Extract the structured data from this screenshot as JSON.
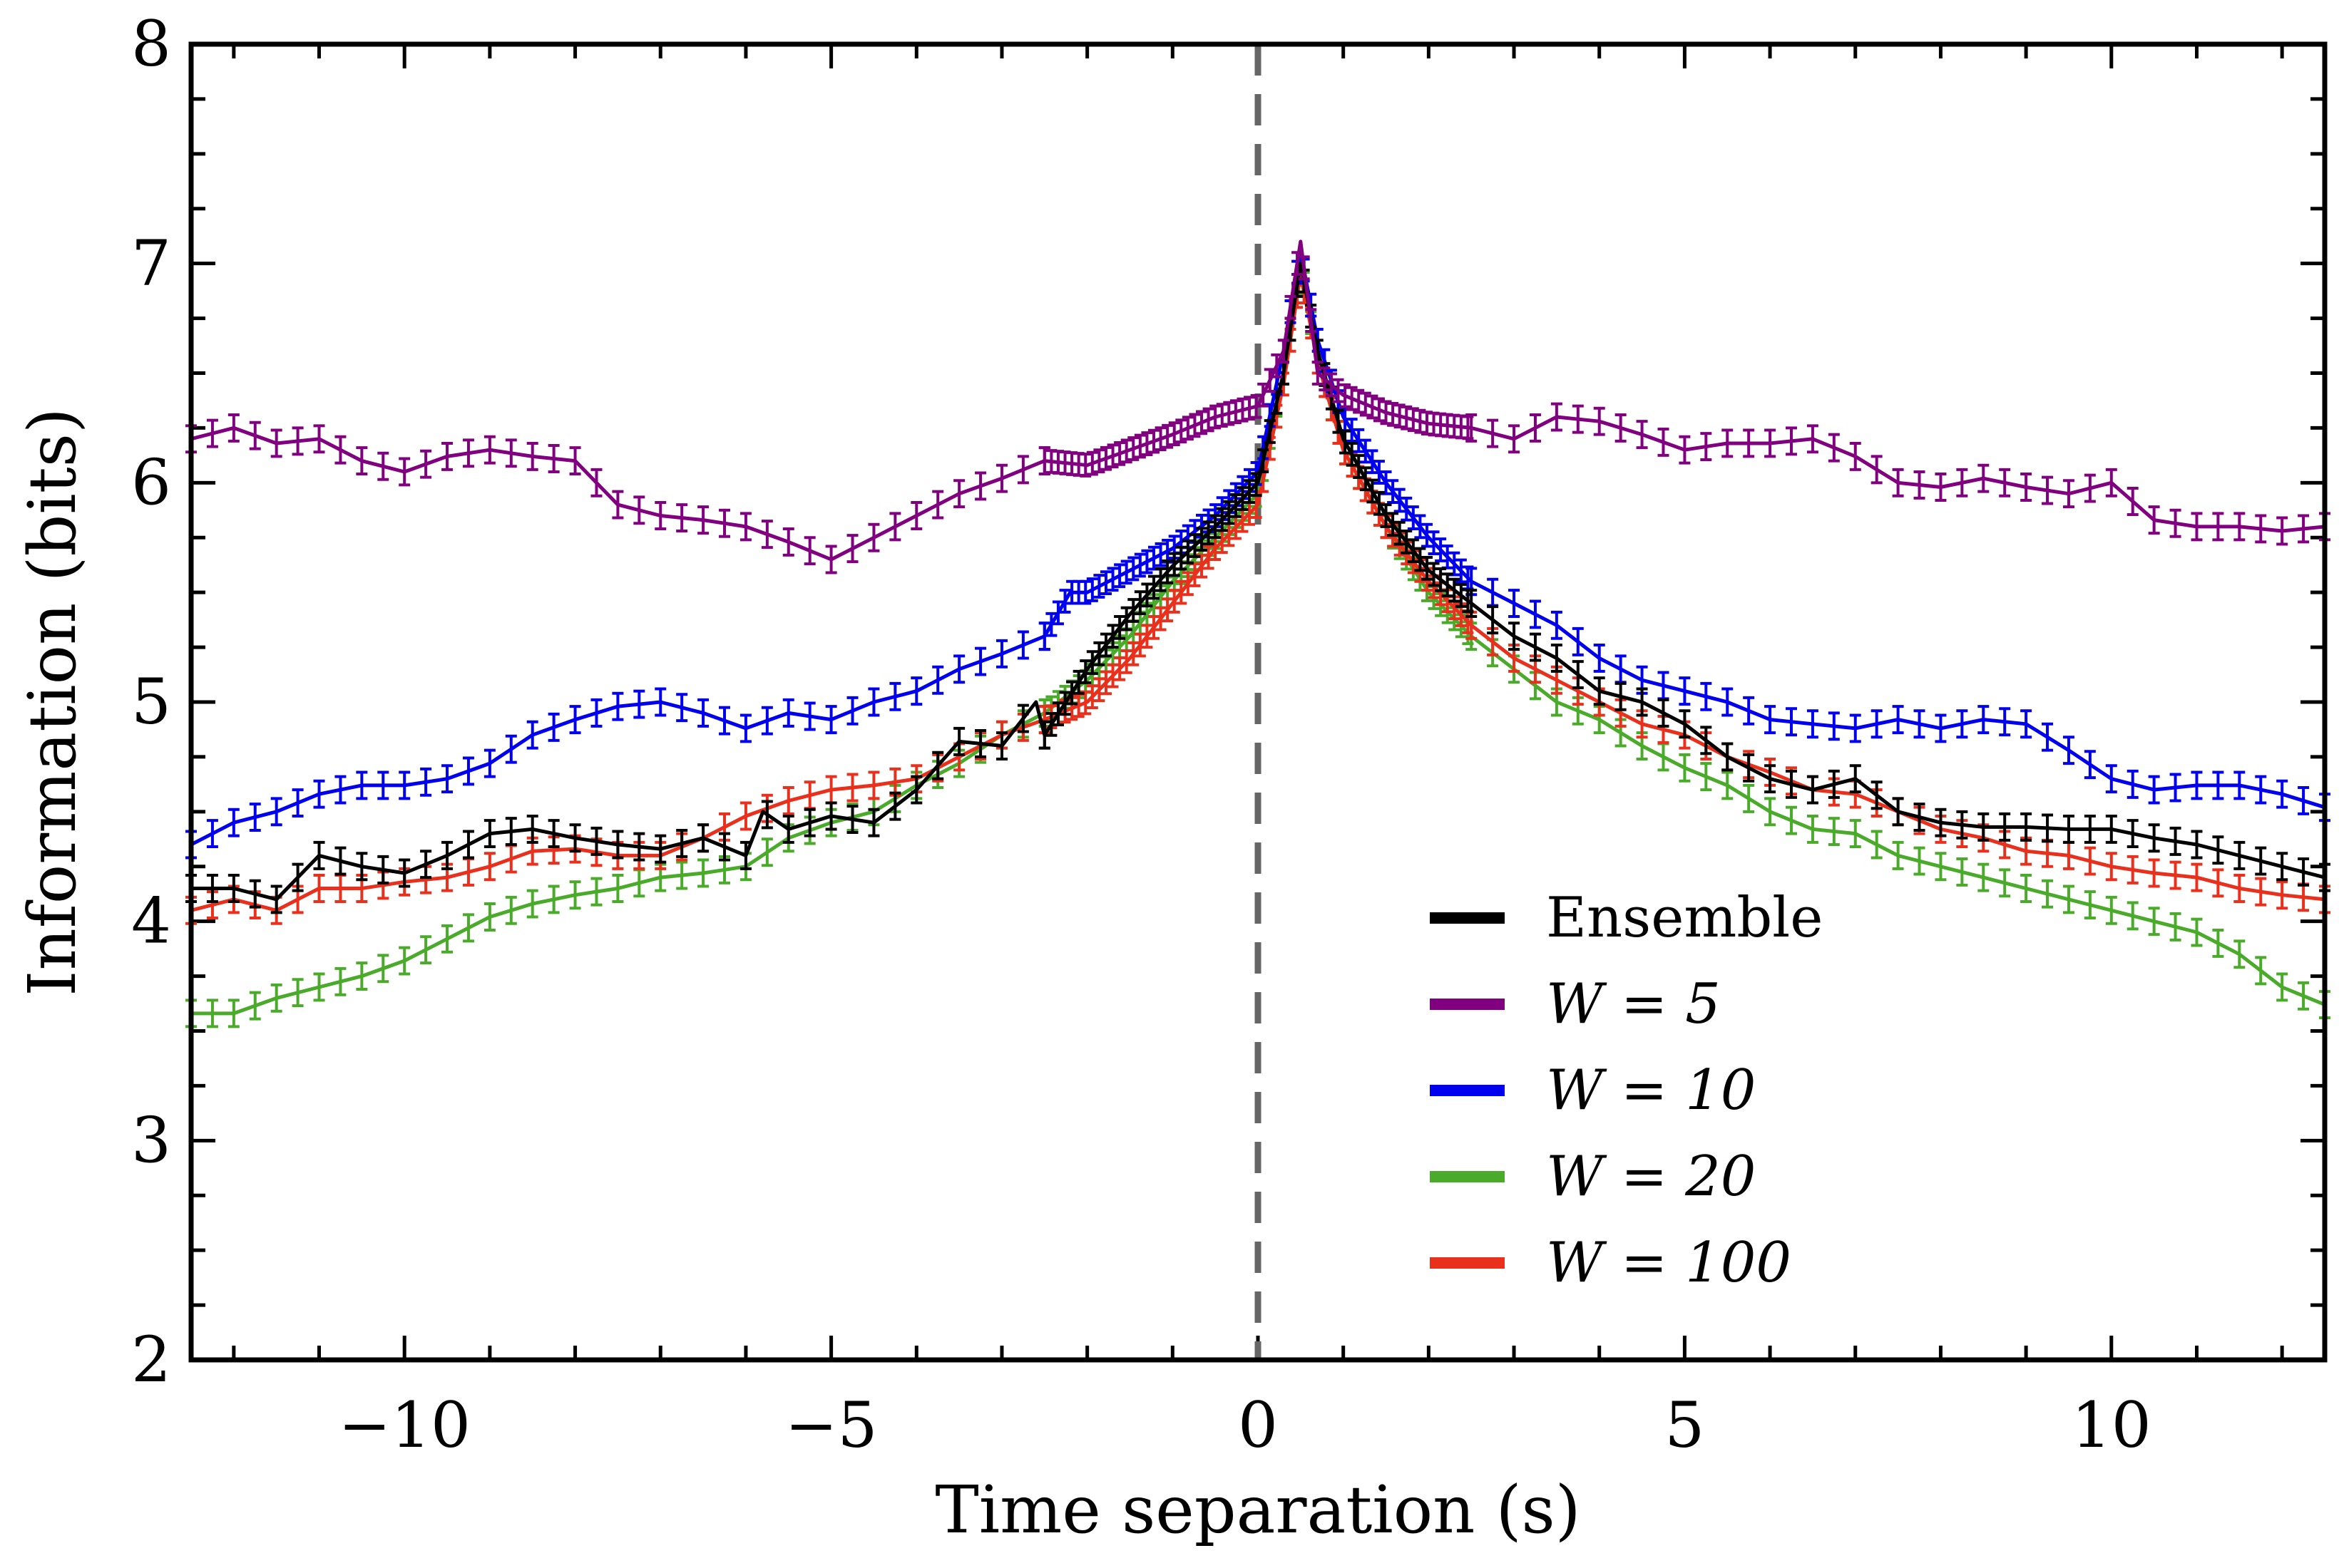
{
  "chart_data": {
    "type": "line",
    "title": "",
    "xlabel": "Time separation (s)",
    "ylabel": "Information (bits)",
    "xlim": [
      -12.5,
      12.5
    ],
    "ylim": [
      2,
      8
    ],
    "xticks": [
      -10,
      -5,
      0,
      5,
      10
    ],
    "xtick_labels": [
      "−10",
      "−5",
      "0",
      "5",
      "10"
    ],
    "yticks": [
      2,
      3,
      4,
      5,
      6,
      7,
      8
    ],
    "ytick_labels": [
      "2",
      "3",
      "4",
      "5",
      "6",
      "7",
      "8"
    ],
    "reference_line": {
      "x": 0,
      "style": "dashed",
      "color": "#666666"
    },
    "legend_location": "lower-right",
    "series": [
      {
        "name": "Ensemble",
        "color": "#000000",
        "points": [
          [
            -12.5,
            4.15
          ],
          [
            -12,
            4.15
          ],
          [
            -11.5,
            4.1
          ],
          [
            -11,
            4.3
          ],
          [
            -10.5,
            4.25
          ],
          [
            -10,
            4.22
          ],
          [
            -9.5,
            4.3
          ],
          [
            -9,
            4.4
          ],
          [
            -8.5,
            4.42
          ],
          [
            -8,
            4.38
          ],
          [
            -7.5,
            4.35
          ],
          [
            -7,
            4.33
          ],
          [
            -6.5,
            4.38
          ],
          [
            -6,
            4.3
          ],
          [
            -5.8,
            4.5
          ],
          [
            -5.5,
            4.42
          ],
          [
            -5,
            4.48
          ],
          [
            -4.5,
            4.45
          ],
          [
            -4,
            4.6
          ],
          [
            -3.5,
            4.82
          ],
          [
            -3,
            4.8
          ],
          [
            -2.6,
            5.0
          ],
          [
            -2.5,
            4.85
          ],
          [
            -2,
            5.15
          ],
          [
            -1.5,
            5.4
          ],
          [
            -1,
            5.62
          ],
          [
            -0.5,
            5.8
          ],
          [
            0,
            6.0
          ],
          [
            0.3,
            6.5
          ],
          [
            0.5,
            7.0
          ],
          [
            0.7,
            6.6
          ],
          [
            1,
            6.2
          ],
          [
            1.5,
            5.85
          ],
          [
            2,
            5.6
          ],
          [
            2.5,
            5.45
          ],
          [
            3,
            5.3
          ],
          [
            3.5,
            5.2
          ],
          [
            4,
            5.05
          ],
          [
            4.5,
            5.0
          ],
          [
            5,
            4.9
          ],
          [
            5.5,
            4.75
          ],
          [
            6,
            4.65
          ],
          [
            6.5,
            4.6
          ],
          [
            7,
            4.65
          ],
          [
            7.5,
            4.5
          ],
          [
            8,
            4.45
          ],
          [
            8.5,
            4.43
          ],
          [
            9,
            4.43
          ],
          [
            9.5,
            4.42
          ],
          [
            10,
            4.42
          ],
          [
            10.5,
            4.38
          ],
          [
            11,
            4.35
          ],
          [
            11.5,
            4.3
          ],
          [
            12,
            4.25
          ],
          [
            12.5,
            4.2
          ]
        ]
      },
      {
        "name": "W = 5",
        "color": "#800080",
        "points": [
          [
            -12.5,
            6.2
          ],
          [
            -12,
            6.25
          ],
          [
            -11.5,
            6.18
          ],
          [
            -11,
            6.2
          ],
          [
            -10.5,
            6.1
          ],
          [
            -10,
            6.05
          ],
          [
            -9.5,
            6.12
          ],
          [
            -9,
            6.15
          ],
          [
            -8.5,
            6.12
          ],
          [
            -8,
            6.1
          ],
          [
            -7.5,
            5.9
          ],
          [
            -7,
            5.85
          ],
          [
            -6.5,
            5.83
          ],
          [
            -6,
            5.8
          ],
          [
            -5.5,
            5.73
          ],
          [
            -5,
            5.65
          ],
          [
            -4.5,
            5.75
          ],
          [
            -4,
            5.85
          ],
          [
            -3.5,
            5.95
          ],
          [
            -3,
            6.02
          ],
          [
            -2.5,
            6.1
          ],
          [
            -2,
            6.08
          ],
          [
            -1.5,
            6.15
          ],
          [
            -1,
            6.22
          ],
          [
            -0.5,
            6.3
          ],
          [
            0,
            6.35
          ],
          [
            0.3,
            6.6
          ],
          [
            0.5,
            7.1
          ],
          [
            0.7,
            6.5
          ],
          [
            1,
            6.4
          ],
          [
            1.5,
            6.32
          ],
          [
            2,
            6.27
          ],
          [
            2.5,
            6.25
          ],
          [
            3,
            6.2
          ],
          [
            3.5,
            6.3
          ],
          [
            4,
            6.28
          ],
          [
            4.5,
            6.22
          ],
          [
            5,
            6.15
          ],
          [
            5.5,
            6.18
          ],
          [
            6,
            6.18
          ],
          [
            6.5,
            6.2
          ],
          [
            7,
            6.12
          ],
          [
            7.5,
            6.0
          ],
          [
            8,
            5.98
          ],
          [
            8.5,
            6.02
          ],
          [
            9,
            5.98
          ],
          [
            9.5,
            5.95
          ],
          [
            10,
            6.0
          ],
          [
            10.5,
            5.83
          ],
          [
            11,
            5.8
          ],
          [
            11.5,
            5.8
          ],
          [
            12,
            5.78
          ],
          [
            12.5,
            5.8
          ]
        ]
      },
      {
        "name": "W = 10",
        "color": "#0000ee",
        "points": [
          [
            -12.5,
            4.35
          ],
          [
            -12,
            4.45
          ],
          [
            -11.5,
            4.5
          ],
          [
            -11,
            4.58
          ],
          [
            -10.5,
            4.62
          ],
          [
            -10,
            4.62
          ],
          [
            -9.5,
            4.65
          ],
          [
            -9,
            4.72
          ],
          [
            -8.5,
            4.85
          ],
          [
            -8,
            4.92
          ],
          [
            -7.5,
            4.98
          ],
          [
            -7,
            5.0
          ],
          [
            -6.5,
            4.95
          ],
          [
            -6,
            4.88
          ],
          [
            -5.5,
            4.95
          ],
          [
            -5,
            4.92
          ],
          [
            -4.5,
            5.0
          ],
          [
            -4,
            5.05
          ],
          [
            -3.5,
            5.15
          ],
          [
            -3,
            5.22
          ],
          [
            -2.5,
            5.3
          ],
          [
            -2.2,
            5.5
          ],
          [
            -2,
            5.5
          ],
          [
            -1.5,
            5.6
          ],
          [
            -1,
            5.7
          ],
          [
            -0.5,
            5.85
          ],
          [
            0,
            6.05
          ],
          [
            0.3,
            6.6
          ],
          [
            0.5,
            7.05
          ],
          [
            0.7,
            6.65
          ],
          [
            1,
            6.3
          ],
          [
            1.5,
            6.0
          ],
          [
            2,
            5.75
          ],
          [
            2.5,
            5.55
          ],
          [
            3,
            5.45
          ],
          [
            3.5,
            5.35
          ],
          [
            4,
            5.2
          ],
          [
            4.5,
            5.1
          ],
          [
            5,
            5.05
          ],
          [
            5.5,
            5.0
          ],
          [
            6,
            4.92
          ],
          [
            6.5,
            4.9
          ],
          [
            7,
            4.88
          ],
          [
            7.5,
            4.92
          ],
          [
            8,
            4.88
          ],
          [
            8.5,
            4.92
          ],
          [
            9,
            4.9
          ],
          [
            9.5,
            4.78
          ],
          [
            10,
            4.65
          ],
          [
            10.5,
            4.6
          ],
          [
            11,
            4.62
          ],
          [
            11.5,
            4.62
          ],
          [
            12,
            4.58
          ],
          [
            12.5,
            4.52
          ]
        ]
      },
      {
        "name": "W = 20",
        "color": "#4aaa2a",
        "points": [
          [
            -12.5,
            3.58
          ],
          [
            -12,
            3.58
          ],
          [
            -11.5,
            3.65
          ],
          [
            -11,
            3.7
          ],
          [
            -10.5,
            3.75
          ],
          [
            -10,
            3.82
          ],
          [
            -9.5,
            3.92
          ],
          [
            -9,
            4.02
          ],
          [
            -8.5,
            4.08
          ],
          [
            -8,
            4.12
          ],
          [
            -7.5,
            4.15
          ],
          [
            -7,
            4.2
          ],
          [
            -6.5,
            4.22
          ],
          [
            -6,
            4.25
          ],
          [
            -5.5,
            4.38
          ],
          [
            -5,
            4.45
          ],
          [
            -4.5,
            4.5
          ],
          [
            -4,
            4.62
          ],
          [
            -3.5,
            4.72
          ],
          [
            -3,
            4.85
          ],
          [
            -2.5,
            4.95
          ],
          [
            -2,
            5.1
          ],
          [
            -1.5,
            5.3
          ],
          [
            -1,
            5.55
          ],
          [
            -0.5,
            5.75
          ],
          [
            0,
            5.95
          ],
          [
            0.3,
            6.5
          ],
          [
            0.5,
            7.0
          ],
          [
            0.7,
            6.55
          ],
          [
            1,
            6.15
          ],
          [
            1.5,
            5.8
          ],
          [
            2,
            5.5
          ],
          [
            2.5,
            5.3
          ],
          [
            3,
            5.15
          ],
          [
            3.5,
            5.0
          ],
          [
            4,
            4.92
          ],
          [
            4.5,
            4.8
          ],
          [
            5,
            4.7
          ],
          [
            5.5,
            4.62
          ],
          [
            6,
            4.5
          ],
          [
            6.5,
            4.42
          ],
          [
            7,
            4.4
          ],
          [
            7.5,
            4.3
          ],
          [
            8,
            4.25
          ],
          [
            8.5,
            4.2
          ],
          [
            9,
            4.15
          ],
          [
            9.5,
            4.1
          ],
          [
            10,
            4.05
          ],
          [
            10.5,
            4.0
          ],
          [
            11,
            3.95
          ],
          [
            11.5,
            3.85
          ],
          [
            12,
            3.7
          ],
          [
            12.5,
            3.62
          ]
        ]
      },
      {
        "name": "W = 100",
        "color": "#e8301c",
        "points": [
          [
            -12.5,
            4.05
          ],
          [
            -12,
            4.1
          ],
          [
            -11.5,
            4.05
          ],
          [
            -11,
            4.15
          ],
          [
            -10.5,
            4.15
          ],
          [
            -10,
            4.18
          ],
          [
            -9.5,
            4.2
          ],
          [
            -9,
            4.25
          ],
          [
            -8.5,
            4.32
          ],
          [
            -8,
            4.33
          ],
          [
            -7.5,
            4.3
          ],
          [
            -7,
            4.3
          ],
          [
            -6.5,
            4.38
          ],
          [
            -6,
            4.48
          ],
          [
            -5.5,
            4.55
          ],
          [
            -5,
            4.6
          ],
          [
            -4.5,
            4.62
          ],
          [
            -4,
            4.65
          ],
          [
            -3.5,
            4.75
          ],
          [
            -3,
            4.85
          ],
          [
            -2.5,
            4.92
          ],
          [
            -2,
            5.0
          ],
          [
            -1.5,
            5.2
          ],
          [
            -1,
            5.45
          ],
          [
            -0.5,
            5.7
          ],
          [
            0,
            5.9
          ],
          [
            0.3,
            6.45
          ],
          [
            0.5,
            6.95
          ],
          [
            0.7,
            6.55
          ],
          [
            1,
            6.15
          ],
          [
            1.5,
            5.8
          ],
          [
            2,
            5.55
          ],
          [
            2.5,
            5.35
          ],
          [
            3,
            5.2
          ],
          [
            3.5,
            5.1
          ],
          [
            4,
            5.0
          ],
          [
            4.5,
            4.9
          ],
          [
            5,
            4.85
          ],
          [
            5.5,
            4.75
          ],
          [
            6,
            4.68
          ],
          [
            6.5,
            4.6
          ],
          [
            7,
            4.58
          ],
          [
            7.5,
            4.5
          ],
          [
            8,
            4.42
          ],
          [
            8.5,
            4.38
          ],
          [
            9,
            4.32
          ],
          [
            9.5,
            4.3
          ],
          [
            10,
            4.25
          ],
          [
            10.5,
            4.22
          ],
          [
            11,
            4.2
          ],
          [
            11.5,
            4.15
          ],
          [
            12,
            4.12
          ],
          [
            12.5,
            4.1
          ]
        ]
      }
    ]
  }
}
